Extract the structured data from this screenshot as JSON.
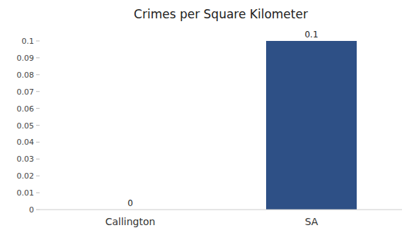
{
  "chart_data": {
    "type": "bar",
    "title": "Crimes per Square Kilometer",
    "categories": [
      "Callington",
      "SA"
    ],
    "values": [
      0.0,
      0.1
    ],
    "color": "#2e5086",
    "ylim": [
      0,
      0.1
    ],
    "yticks": [
      0,
      0.01,
      0.02,
      0.03,
      0.04,
      0.05,
      0.06,
      0.07,
      0.08,
      0.09,
      0.1
    ],
    "data_labels": true,
    "grid": false
  }
}
